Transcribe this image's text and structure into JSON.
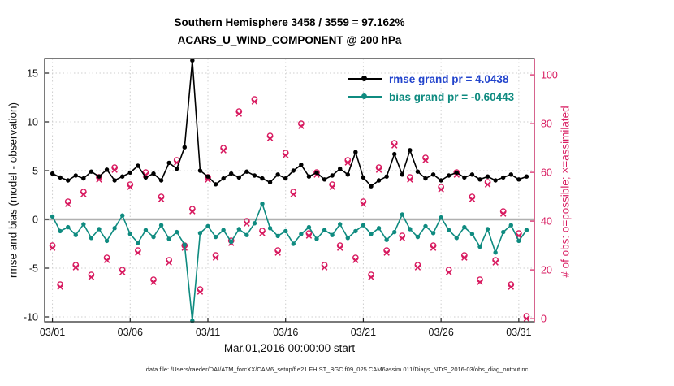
{
  "title": {
    "line1": "Southern Hemisphere 3458 / 3559 = 97.162%",
    "line2": "ACARS_U_WIND_COMPONENT @ 200 hPa"
  },
  "axes": {
    "left_label": "rmse and bias (model - observation)",
    "right_label": "# of obs: o=possible; ×=assimilated",
    "x_label": "Mar.01,2016 00:00:00 start"
  },
  "legend": {
    "rmse": {
      "label": "rmse grand pr = 4.0438"
    },
    "bias": {
      "label": "bias grand pr = -0.60443"
    }
  },
  "caption": "data file: /Users/raeder/DAI/ATM_forcXX/CAM6_setup/f.e21.FHIST_BGC.f09_025.CAM6assim.011/Diags_NTrS_2016-03/obs_diag_output.nc",
  "colors": {
    "rmse_line": "#000000",
    "bias_line": "#0f8b80",
    "obs_marker": "#d81b60",
    "rmse_legend_text": "#2244cc",
    "grid": "#cfcfcf",
    "zero_line": "#b0b0b0",
    "axis": "#222222"
  },
  "chart_data": {
    "type": "line",
    "title": "Southern Hemisphere 3458 / 3559 = 97.162% / ACARS_U_WIND_COMPONENT @ 200 hPa",
    "xlabel": "Mar.01,2016 00:00:00 start",
    "ylabel_left": "rmse and bias (model - observation)",
    "ylabel_right": "# of obs: o=possible; ×=assimilated",
    "xlim": [
      -0.5,
      31.0
    ],
    "left_ylim": [
      -10.5,
      16.5
    ],
    "right_ylim": [
      -1.3,
      106.7
    ],
    "grid": true,
    "legend_position": "upper-right-inside",
    "x_ticks": [
      {
        "v": 0,
        "label": "03/01"
      },
      {
        "v": 5,
        "label": "03/06"
      },
      {
        "v": 10,
        "label": "03/11"
      },
      {
        "v": 15,
        "label": "03/16"
      },
      {
        "v": 20,
        "label": "03/21"
      },
      {
        "v": 25,
        "label": "03/26"
      },
      {
        "v": 30,
        "label": "03/31"
      }
    ],
    "left_ticks": [
      -10,
      -5,
      0,
      5,
      10,
      15
    ],
    "right_ticks": [
      0,
      20,
      40,
      60,
      80,
      100
    ],
    "x": [
      0,
      0.5,
      1,
      1.5,
      2,
      2.5,
      3,
      3.5,
      4,
      4.5,
      5,
      5.5,
      6,
      6.5,
      7,
      7.5,
      8,
      8.5,
      9,
      9.5,
      10,
      10.5,
      11,
      11.5,
      12,
      12.5,
      13,
      13.5,
      14,
      14.5,
      15,
      15.5,
      16,
      16.5,
      17,
      17.5,
      18,
      18.5,
      19,
      19.5,
      20,
      20.5,
      21,
      21.5,
      22,
      22.5,
      23,
      23.5,
      24,
      24.5,
      25,
      25.5,
      26,
      26.5,
      27,
      27.5,
      28,
      28.5,
      29,
      29.5,
      30,
      30.5
    ],
    "series": [
      {
        "name": "rmse",
        "grand_value": 4.0438,
        "color": "#000000",
        "values": [
          4.7,
          4.3,
          4.0,
          4.5,
          4.2,
          4.9,
          4.4,
          5.1,
          4.0,
          4.4,
          4.8,
          5.5,
          4.3,
          4.7,
          4.0,
          5.8,
          5.2,
          7.4,
          16.3,
          5.0,
          4.4,
          3.6,
          4.2,
          4.7,
          4.3,
          4.9,
          4.5,
          4.2,
          3.8,
          4.6,
          4.2,
          5.0,
          5.6,
          4.4,
          4.8,
          4.1,
          4.5,
          5.2,
          4.6,
          6.9,
          4.3,
          3.4,
          4.0,
          4.4,
          6.7,
          4.6,
          7.1,
          4.9,
          4.2,
          4.6,
          4.0,
          4.5,
          4.8,
          4.3,
          4.6,
          4.1,
          4.4,
          4.0,
          4.3,
          4.6,
          4.1,
          4.4
        ]
      },
      {
        "name": "bias",
        "grand_value": -0.60443,
        "color": "#0f8b80",
        "values": [
          0.3,
          -1.2,
          -0.8,
          -1.6,
          -0.5,
          -1.9,
          -1.0,
          -2.2,
          -0.9,
          0.4,
          -1.5,
          -2.4,
          -1.1,
          -1.8,
          -0.6,
          -2.0,
          -1.3,
          -2.6,
          -10.4,
          -1.4,
          -0.7,
          -1.8,
          -1.1,
          -2.3,
          -1.0,
          -1.6,
          -0.4,
          1.6,
          -0.9,
          -1.7,
          -1.2,
          -2.5,
          -1.5,
          -0.8,
          -2.0,
          -1.1,
          -1.6,
          -0.5,
          -1.9,
          -1.2,
          -0.6,
          -1.5,
          -0.9,
          -2.1,
          -1.3,
          0.5,
          -1.0,
          -1.8,
          -0.7,
          -1.4,
          0.2,
          -1.1,
          -1.9,
          -0.8,
          -1.5,
          -2.8,
          -1.0,
          -3.4,
          -1.3,
          -0.6,
          -2.2,
          -1.1
        ]
      }
    ],
    "obs_series": [
      {
        "name": "possible",
        "marker": "o",
        "color": "#d81b60",
        "values": [
          30,
          14,
          48,
          22,
          52,
          18,
          58,
          25,
          62,
          20,
          55,
          28,
          60,
          16,
          50,
          24,
          65,
          30,
          45,
          12,
          58,
          26,
          70,
          32,
          85,
          40,
          90,
          36,
          75,
          28,
          68,
          52,
          80,
          35,
          60,
          22,
          55,
          30,
          65,
          25,
          48,
          18,
          62,
          28,
          72,
          34,
          58,
          22,
          66,
          30,
          54,
          20,
          60,
          26,
          50,
          16,
          56,
          24,
          44,
          14,
          35,
          1
        ]
      },
      {
        "name": "assimilated",
        "marker": "x",
        "color": "#d81b60",
        "values": [
          29,
          13,
          47,
          21,
          51,
          17,
          57,
          24,
          61,
          19,
          54,
          27,
          59,
          15,
          49,
          23,
          64,
          29,
          44,
          11,
          57,
          25,
          69,
          31,
          84,
          39,
          89,
          35,
          74,
          27,
          67,
          51,
          79,
          34,
          59,
          21,
          54,
          29,
          64,
          24,
          47,
          17,
          61,
          27,
          71,
          33,
          57,
          21,
          65,
          29,
          53,
          19,
          59,
          25,
          49,
          15,
          55,
          23,
          43,
          13,
          34,
          0
        ]
      }
    ]
  }
}
